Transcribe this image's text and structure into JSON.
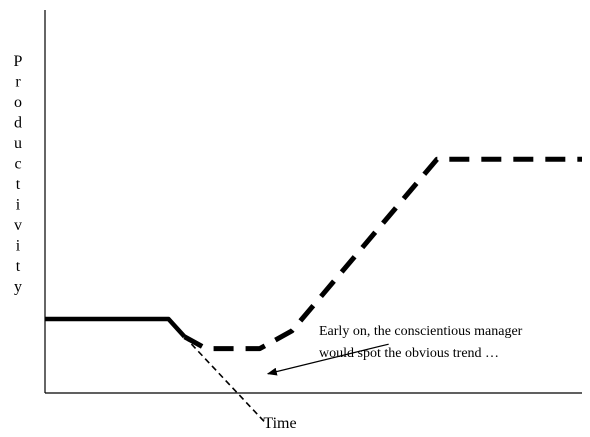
{
  "chart_data": {
    "type": "line",
    "title": "",
    "xlabel": "Time",
    "ylabel": "Productivity",
    "x_ticks": [],
    "y_ticks": [],
    "grid": false,
    "legend": "none",
    "colors": {
      "line": "#000000",
      "axis": "#000000",
      "background": "#ffffff"
    },
    "xlim": [
      0,
      100
    ],
    "ylim": [
      0,
      100
    ],
    "series": [
      {
        "style": "solid",
        "x": [
          0,
          23,
          26
        ],
        "y": [
          25,
          25,
          19
        ]
      },
      {
        "style": "dashed",
        "x": [
          26,
          30,
          40,
          46,
          73,
          100
        ],
        "y": [
          19,
          15,
          15,
          21,
          79,
          79
        ]
      },
      {
        "style": "dashed-thin",
        "x": [
          26,
          41
        ],
        "y": [
          19,
          -10
        ]
      }
    ],
    "annotation": {
      "lines": [
        "Early on, the conscientious manager",
        "would spot the obvious trend …"
      ],
      "arrow_from": [
        64,
        16.5
      ],
      "arrow_to": [
        41.5,
        6.5
      ]
    }
  }
}
